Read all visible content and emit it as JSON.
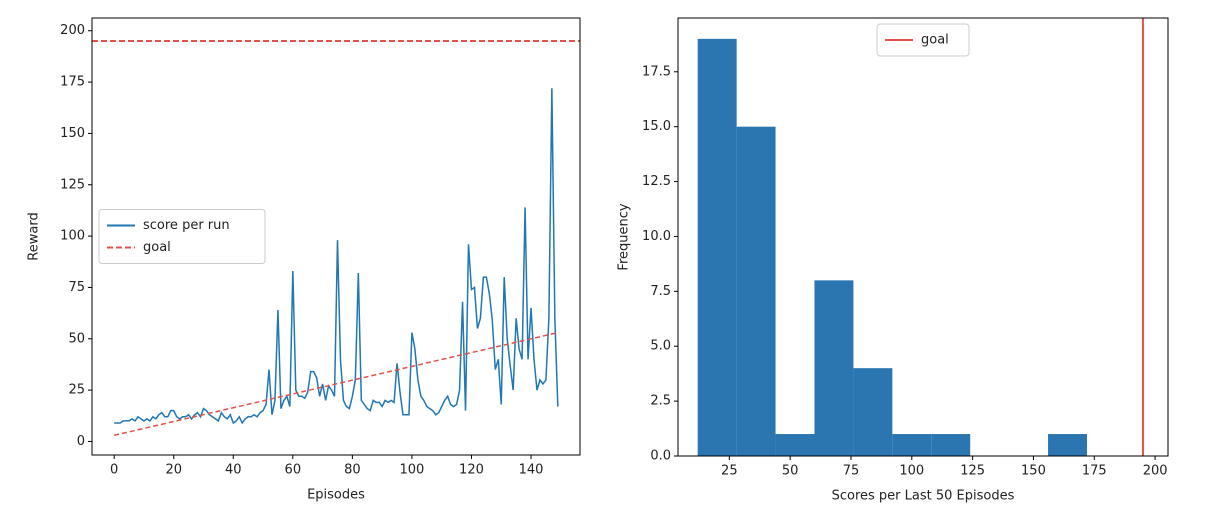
{
  "chart_data": [
    {
      "type": "line",
      "xlabel": "Episodes",
      "ylabel": "Reward",
      "x": [
        0,
        1,
        2,
        3,
        4,
        5,
        6,
        7,
        8,
        9,
        10,
        11,
        12,
        13,
        14,
        15,
        16,
        17,
        18,
        19,
        20,
        21,
        22,
        23,
        24,
        25,
        26,
        27,
        28,
        29,
        30,
        31,
        32,
        33,
        34,
        35,
        36,
        37,
        38,
        39,
        40,
        41,
        42,
        43,
        44,
        45,
        46,
        47,
        48,
        49,
        50,
        51,
        52,
        53,
        54,
        55,
        56,
        57,
        58,
        59,
        60,
        61,
        62,
        63,
        64,
        65,
        66,
        67,
        68,
        69,
        70,
        71,
        72,
        73,
        74,
        75,
        76,
        77,
        78,
        79,
        80,
        81,
        82,
        83,
        84,
        85,
        86,
        87,
        88,
        89,
        90,
        91,
        92,
        93,
        94,
        95,
        96,
        97,
        98,
        99,
        100,
        101,
        102,
        103,
        104,
        105,
        106,
        107,
        108,
        109,
        110,
        111,
        112,
        113,
        114,
        115,
        116,
        117,
        118,
        119,
        120,
        121,
        122,
        123,
        124,
        125,
        126,
        127,
        128,
        129,
        130,
        131,
        132,
        133,
        134,
        135,
        136,
        137,
        138,
        139,
        140,
        141,
        142,
        143,
        144,
        145,
        146,
        147,
        148,
        149
      ],
      "series": [
        {
          "name": "score per run",
          "color": "#1f77b4",
          "values": [
            9,
            9,
            9,
            10,
            10,
            10,
            11,
            10,
            12,
            11,
            10,
            11,
            10,
            12,
            11,
            13,
            14,
            12,
            12,
            15,
            15,
            12,
            11,
            12,
            12,
            13,
            11,
            13,
            14,
            12,
            16,
            15,
            13,
            12,
            11,
            10,
            14,
            12,
            11,
            13,
            9,
            10,
            12,
            9,
            11,
            12,
            12,
            13,
            12,
            14,
            15,
            18,
            35,
            13,
            20,
            64,
            16,
            20,
            22,
            17,
            83,
            25,
            22,
            22,
            21,
            24,
            34,
            34,
            31,
            22,
            28,
            20,
            27,
            25,
            22,
            98,
            40,
            20,
            17,
            16,
            22,
            30,
            82,
            20,
            18,
            16,
            15,
            20,
            19,
            19,
            17,
            20,
            19,
            20,
            19,
            38,
            24,
            13,
            13,
            13,
            53,
            45,
            30,
            22,
            20,
            17,
            16,
            15,
            13,
            14,
            17,
            20,
            22,
            18,
            17,
            18,
            25,
            68,
            15,
            96,
            74,
            75,
            55,
            60,
            80,
            80,
            72,
            59,
            35,
            40,
            18,
            80,
            50,
            37,
            25,
            60,
            45,
            40,
            114,
            40,
            65,
            40,
            25,
            30,
            28,
            30,
            60,
            172,
            60,
            17
          ]
        }
      ],
      "trend": {
        "color": "#e0524a",
        "x": [
          0,
          149
        ],
        "values": [
          3,
          53
        ]
      },
      "reference_lines": [
        {
          "name": "goal",
          "value": 195,
          "orientation": "horizontal",
          "style": "dashed",
          "color": "#e0524a"
        }
      ],
      "xlim": [
        -7.45,
        156.45
      ],
      "xticks": [
        0,
        20,
        40,
        60,
        80,
        100,
        120,
        140
      ],
      "ylim": [
        -6.6,
        206.2
      ],
      "yticks": [
        0,
        25,
        50,
        75,
        100,
        125,
        150,
        175,
        200
      ],
      "legend": "center left"
    },
    {
      "type": "histogram",
      "xlabel": "Scores per Last 50 Episodes",
      "ylabel": "Frequency",
      "bins": [
        12,
        28,
        44,
        60,
        76,
        92,
        108,
        124,
        140,
        156,
        172
      ],
      "values": [
        19,
        15,
        1,
        8,
        4,
        1,
        1,
        0,
        0,
        1
      ],
      "color": "#2b75b0",
      "reference_lines": [
        {
          "name": "goal",
          "value": 195,
          "orientation": "vertical",
          "style": "solid",
          "color": "#e0524a"
        }
      ],
      "xlim": [
        3.9,
        205.3
      ],
      "xticks": [
        25,
        50,
        75,
        100,
        125,
        150,
        175,
        200
      ],
      "ylim": [
        0,
        19.95
      ],
      "yticks": [
        {
          "value": 0,
          "label": "0.0"
        },
        2.5,
        {
          "value": 5,
          "label": "5.0"
        },
        7.5,
        {
          "value": 10,
          "label": "10.0"
        },
        12.5,
        {
          "value": 15,
          "label": "15.0"
        },
        17.5
      ],
      "legend": "upper center"
    }
  ]
}
